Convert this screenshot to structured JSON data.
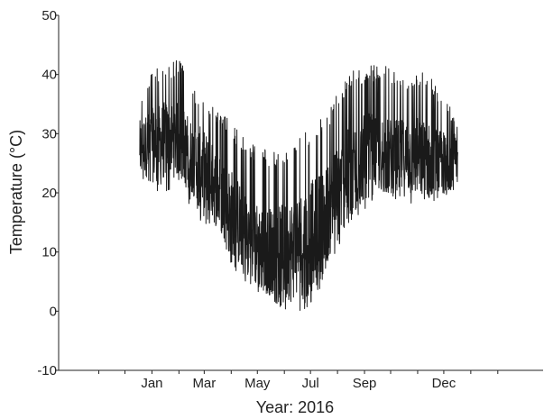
{
  "chart_data": {
    "type": "line",
    "title": "",
    "xlabel": "Year: 2016",
    "ylabel": "Temperature (°C)",
    "ylim": [
      -10,
      50
    ],
    "yticks": [
      "-10",
      "0",
      "10",
      "20",
      "30",
      "40",
      "50"
    ],
    "xlim": [
      "2015-11-01",
      "2017-03-10"
    ],
    "xticks": [
      {
        "label": "Jan",
        "date": "2016-01-15"
      },
      {
        "label": "Mar",
        "date": "2016-03-15"
      },
      {
        "label": "May",
        "date": "2016-05-15"
      },
      {
        "label": "Jul",
        "date": "2016-07-15"
      },
      {
        "label": "Sep",
        "date": "2016-09-15"
      },
      {
        "label": "Dec",
        "date": "2016-12-15"
      }
    ],
    "minor_tick_dates": [
      "2015-11-15",
      "2015-12-15",
      "2016-01-15",
      "2016-02-15",
      "2016-03-15",
      "2016-04-15",
      "2016-05-15",
      "2016-06-15",
      "2016-07-15",
      "2016-08-15",
      "2016-09-15",
      "2016-10-15",
      "2016-11-15",
      "2016-12-15",
      "2017-01-15",
      "2017-02-15"
    ],
    "grid": false,
    "legend": "none",
    "color": "#1a1a1a",
    "series": [
      {
        "x_start": "2016-01-01",
        "x_end": "2016-12-31",
        "samples_per_day": 4,
        "envelope": [
          {
            "date": "2016-01-01",
            "min": 22,
            "mid": 28,
            "max": 36
          },
          {
            "date": "2016-01-15",
            "min": 20,
            "mid": 28,
            "max": 41
          },
          {
            "date": "2016-02-01",
            "min": 20,
            "mid": 29,
            "max": 42
          },
          {
            "date": "2016-02-15",
            "min": 22,
            "mid": 29,
            "max": 43
          },
          {
            "date": "2016-03-01",
            "min": 17,
            "mid": 26,
            "max": 38
          },
          {
            "date": "2016-03-15",
            "min": 14,
            "mid": 24,
            "max": 36
          },
          {
            "date": "2016-04-01",
            "min": 12,
            "mid": 20,
            "max": 34
          },
          {
            "date": "2016-04-15",
            "min": 8,
            "mid": 17,
            "max": 32
          },
          {
            "date": "2016-05-01",
            "min": 4,
            "mid": 13,
            "max": 29
          },
          {
            "date": "2016-05-15",
            "min": 3,
            "mid": 11,
            "max": 28
          },
          {
            "date": "2016-06-01",
            "min": 2,
            "mid": 10,
            "max": 27
          },
          {
            "date": "2016-06-15",
            "min": 0,
            "mid": 10,
            "max": 27
          },
          {
            "date": "2016-07-01",
            "min": -1,
            "mid": 11,
            "max": 29
          },
          {
            "date": "2016-07-15",
            "min": 1,
            "mid": 13,
            "max": 31
          },
          {
            "date": "2016-08-01",
            "min": 5,
            "mid": 16,
            "max": 33
          },
          {
            "date": "2016-08-15",
            "min": 10,
            "mid": 20,
            "max": 37
          },
          {
            "date": "2016-09-01",
            "min": 15,
            "mid": 24,
            "max": 41
          },
          {
            "date": "2016-09-15",
            "min": 17,
            "mid": 26,
            "max": 41
          },
          {
            "date": "2016-10-01",
            "min": 19,
            "mid": 27,
            "max": 42
          },
          {
            "date": "2016-10-15",
            "min": 19,
            "mid": 26,
            "max": 41
          },
          {
            "date": "2016-11-01",
            "min": 18,
            "mid": 26,
            "max": 40
          },
          {
            "date": "2016-11-15",
            "min": 18,
            "mid": 26,
            "max": 41
          },
          {
            "date": "2016-12-01",
            "min": 18,
            "mid": 25,
            "max": 40
          },
          {
            "date": "2016-12-15",
            "min": 18,
            "mid": 25,
            "max": 36
          },
          {
            "date": "2016-12-31",
            "min": 20,
            "mid": 26,
            "max": 33
          }
        ]
      }
    ]
  }
}
